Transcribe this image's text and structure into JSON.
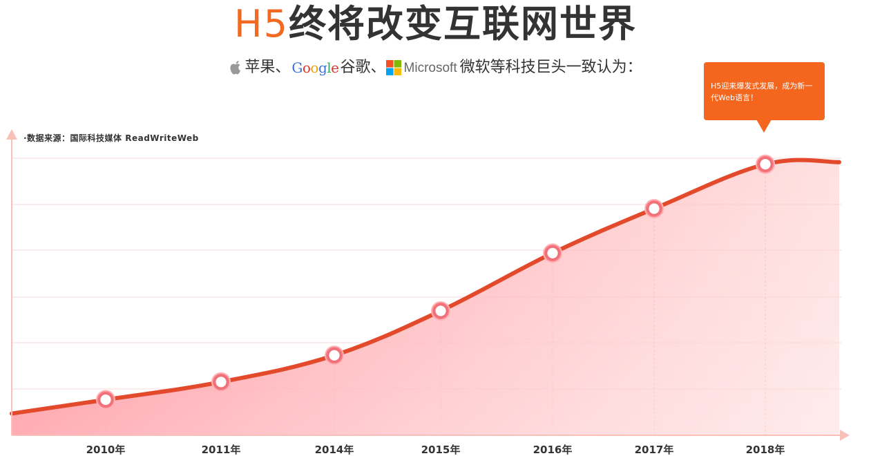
{
  "header": {
    "title_accent": "H5",
    "title_rest": "终将改变互联网世界",
    "subtitle_apple": "苹果、",
    "subtitle_google_logo": [
      "G",
      "o",
      "o",
      "g",
      "l",
      "e"
    ],
    "subtitle_google": "谷歌、",
    "subtitle_microsoft_logo": "Microsoft",
    "subtitle_rest": "微软等科技巨头一致认为："
  },
  "callout": {
    "text": "H5迎来爆发式发展，成为新一代Web语言！"
  },
  "source": {
    "text": "·数据来源：国际科技媒体 ReadWriteWeb"
  },
  "colors": {
    "accent": "#f26a22",
    "line": "#e24a2b",
    "area": "#ff8a95",
    "callout": "#f4651d"
  },
  "chart_data": {
    "type": "area",
    "categories": [
      "2010年",
      "2011年",
      "2014年",
      "2015年",
      "2016年",
      "2017年",
      "2018年"
    ],
    "values": [
      0.8,
      1.2,
      1.8,
      2.8,
      4.1,
      5.1,
      6.1
    ],
    "ylim": [
      0,
      6.5
    ],
    "grid": true
  }
}
